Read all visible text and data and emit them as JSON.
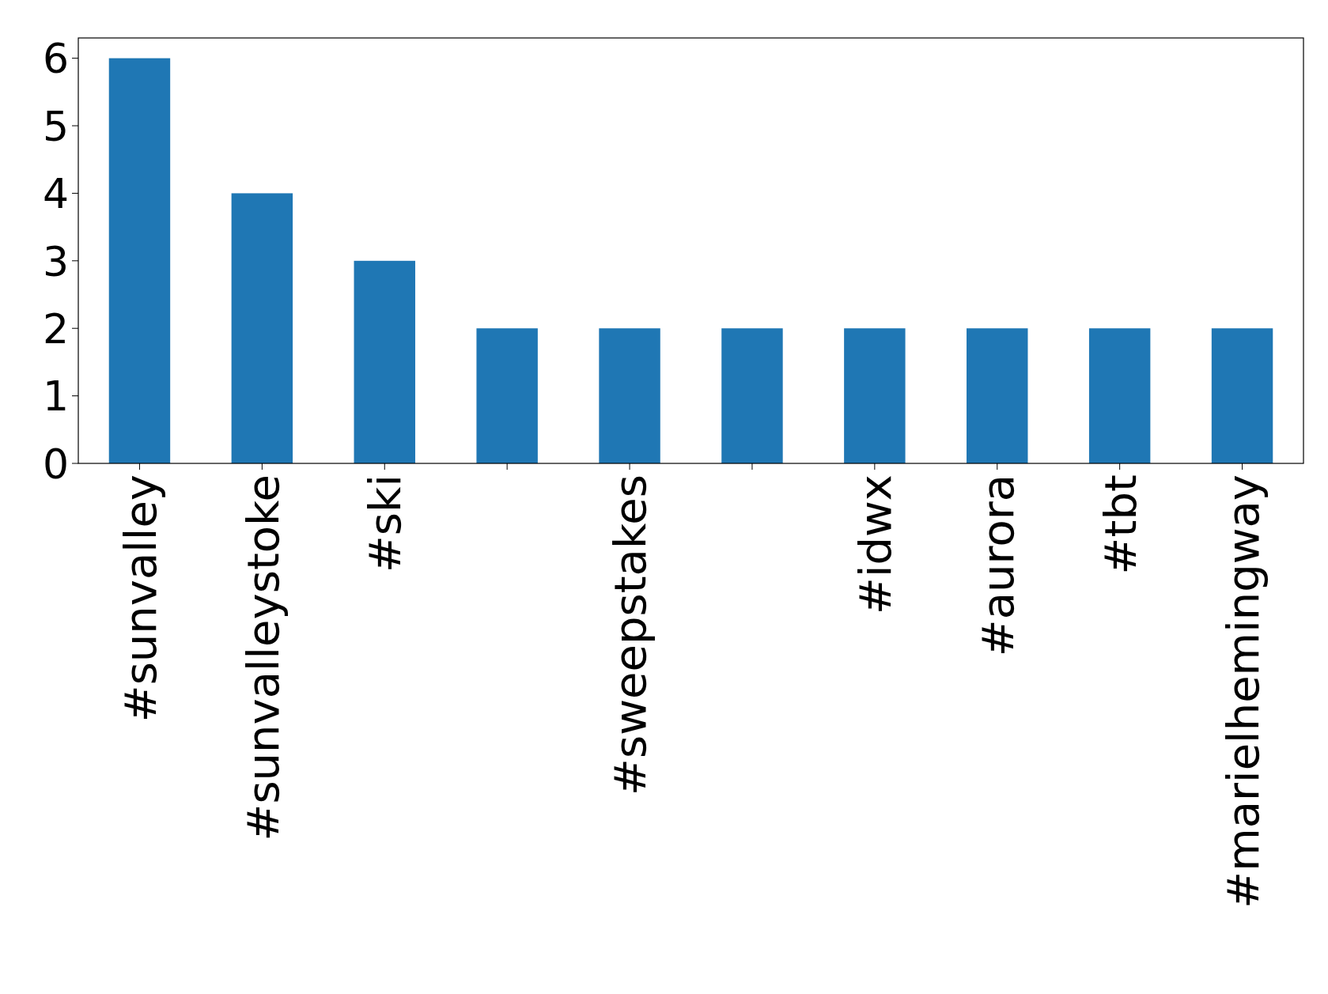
{
  "chart_data": {
    "type": "bar",
    "categories": [
      "#sunvalley",
      "#sunvalleystoke",
      "#ski",
      null,
      "#sweepstakes",
      null,
      "#idwx",
      "#aurora",
      "#tbt",
      "#marielhemingway"
    ],
    "values": [
      6,
      4,
      3,
      2,
      2,
      2,
      2,
      2,
      2,
      2
    ],
    "color": "#1f77b4",
    "ylim": [
      0,
      6.3
    ],
    "yticks": [
      0,
      1,
      2,
      3,
      4,
      5,
      6
    ],
    "grid": false
  }
}
